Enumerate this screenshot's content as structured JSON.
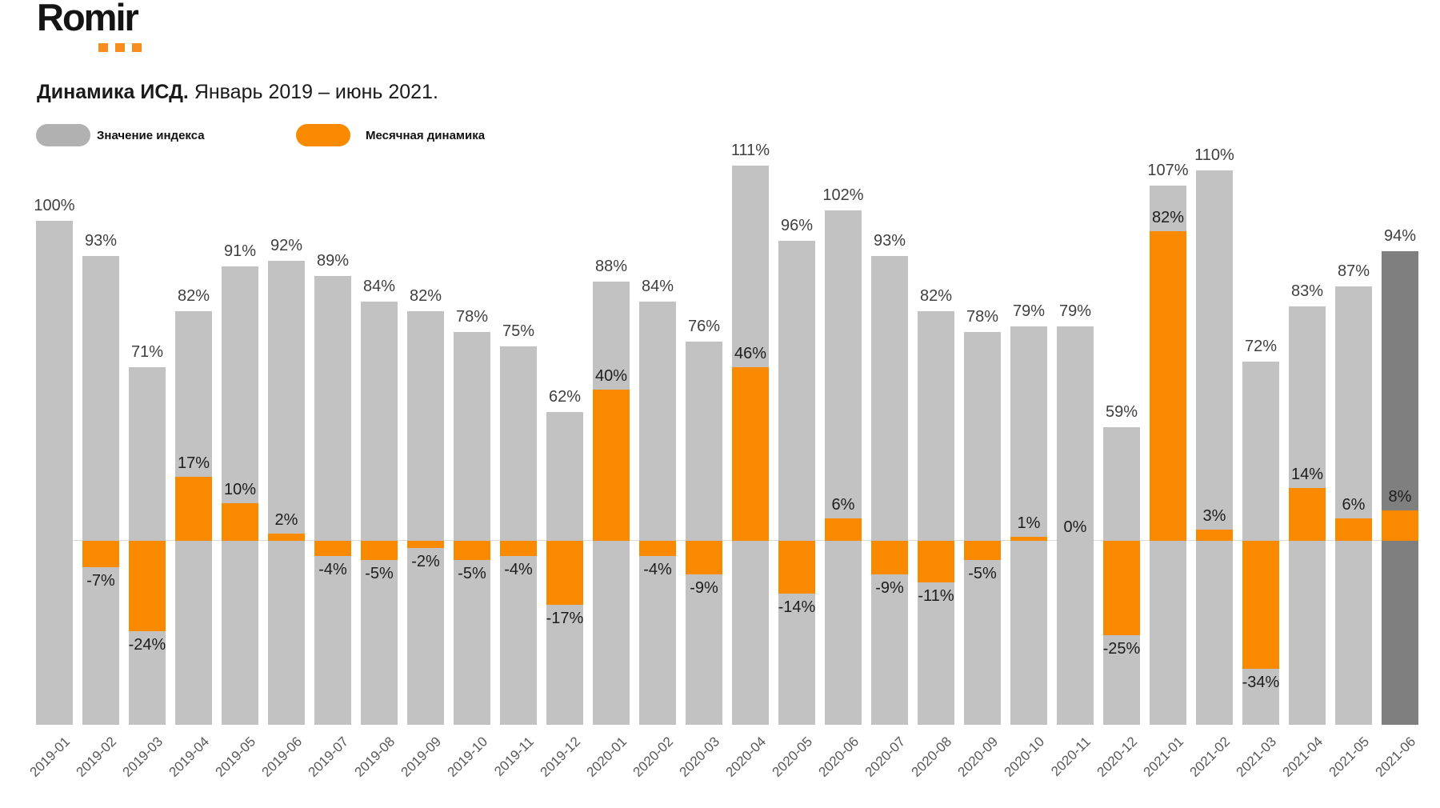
{
  "header": {
    "logo_text": "Romir",
    "title_bold": "Динамика ИСД.",
    "title_period": "Январь 2019 – июнь 2021."
  },
  "legend": {
    "index_label": "Значение индекса",
    "dynamics_label": "Месячная динамика"
  },
  "colors": {
    "index_bar": "#c2c2c3",
    "index_bar_highlight": "#7f7f80",
    "dynamics_bar": "#F98A00",
    "legend_index_swatch": "#b1b1b1",
    "legend_dynamics_swatch": "#F98A00",
    "zero_line": "#d9d9d9",
    "index_value_label": "#3f3f3f",
    "dynamics_value_label": "#1d1d1d",
    "axis_label": "#595959"
  },
  "chart_data": {
    "type": "bar",
    "title": "Динамика ИСД. Январь 2019 – июнь 2021.",
    "xlabel": "",
    "ylabel": "",
    "grid": false,
    "legend_position": "top-left",
    "categories": [
      "2019-01",
      "2019-02",
      "2019-03",
      "2019-04",
      "2019-05",
      "2019-06",
      "2019-07",
      "2019-08",
      "2019-09",
      "2019-10",
      "2019-11",
      "2019-12",
      "2020-01",
      "2020-02",
      "2020-03",
      "2020-04",
      "2020-05",
      "2020-06",
      "2020-07",
      "2020-08",
      "2020-09",
      "2020-10",
      "2020-11",
      "2020-12",
      "2021-01",
      "2021-02",
      "2021-03",
      "2021-04",
      "2021-05",
      "2021-06"
    ],
    "series": [
      {
        "name": "Значение индекса",
        "unit": "%",
        "values": [
          100,
          93,
          71,
          82,
          91,
          92,
          89,
          84,
          82,
          78,
          75,
          62,
          88,
          84,
          76,
          111,
          96,
          102,
          93,
          82,
          78,
          79,
          79,
          59,
          107,
          110,
          72,
          83,
          87,
          94
        ],
        "labels": [
          "100%",
          "93%",
          "71%",
          "82%",
          "91%",
          "92%",
          "89%",
          "84%",
          "82%",
          "78%",
          "75%",
          "62%",
          "88%",
          "84%",
          "76%",
          "111%",
          "96%",
          "102%",
          "93%",
          "82%",
          "78%",
          "79%",
          "79%",
          "59%",
          "107%",
          "110%",
          "72%",
          "83%",
          "87%",
          "94%"
        ]
      },
      {
        "name": "Месячная динамика",
        "unit": "%",
        "values": [
          null,
          -7,
          -24,
          17,
          10,
          2,
          -4,
          -5,
          -2,
          -5,
          -4,
          -17,
          40,
          -4,
          -9,
          46,
          -14,
          6,
          -9,
          -11,
          -5,
          1,
          0,
          -25,
          82,
          3,
          -34,
          14,
          6,
          8
        ],
        "labels": [
          null,
          "-7%",
          "-24%",
          "17%",
          "10%",
          "2%",
          "-4%",
          "-5%",
          "-2%",
          "-5%",
          "-4%",
          "-17%",
          "40%",
          "-4%",
          "-9%",
          "46%",
          "-14%",
          "6%",
          "-9%",
          "-11%",
          "-5%",
          "1%",
          "0%",
          "-25%",
          "82%",
          "3%",
          "-34%",
          "14%",
          "6%",
          "8%"
        ]
      }
    ],
    "highlight_category": "2021-06"
  }
}
